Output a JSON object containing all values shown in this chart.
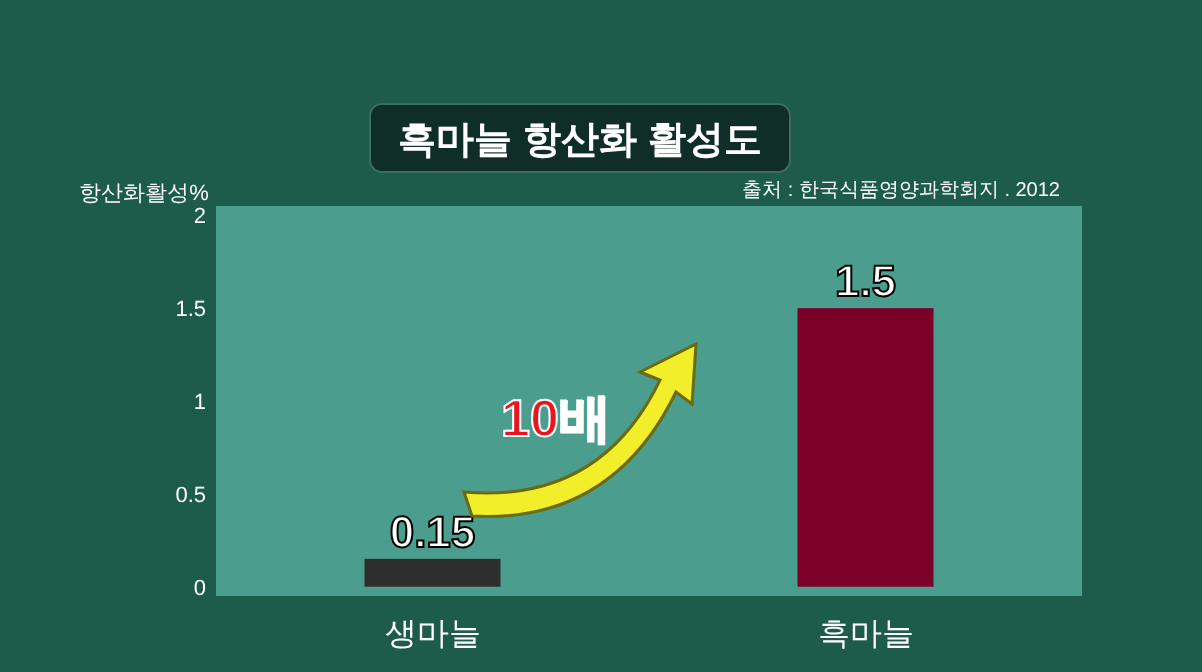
{
  "chart_data": {
    "type": "bar",
    "title": "흑마늘 항산화 활성도",
    "ylabel": "항산화활성%",
    "categories": [
      "생마늘",
      "흑마늘"
    ],
    "values": [
      0.15,
      1.5
    ],
    "colors": [
      "#2e2e2e",
      "#7a0028"
    ],
    "ylim": [
      -0.05,
      2.05
    ],
    "yticks": [
      0,
      0.5,
      1,
      1.5,
      2
    ],
    "data_labels": true,
    "grid": false,
    "annotations": [
      "출처 : 한국식품영양과학회지 . 2012",
      "10배"
    ]
  }
}
